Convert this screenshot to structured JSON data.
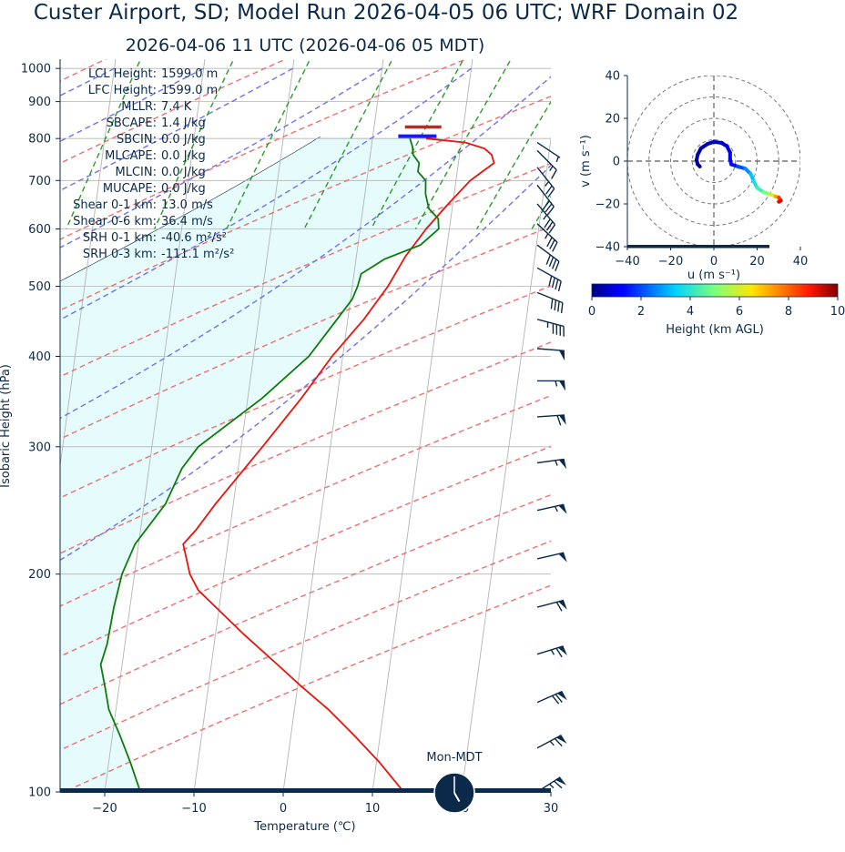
{
  "header": {
    "title": "Custer Airport, SD; Model Run 2026-04-05 06 UTC; WRF Domain 02",
    "subtitle": "2026-04-06 11 UTC  (2026-04-06 05 MDT)"
  },
  "colors": {
    "text": "#0b2a4a",
    "temperature": "#e8140c",
    "dewpoint": "#0a7d0a",
    "dry_adiabat": "#f06e6e",
    "moist_adiabat": "#6f6ff2",
    "mixing_ratio": "#2a9a2a",
    "isotherm": "#b4b4b4",
    "parcel_fill": "#e6fcfc",
    "lcl_marker": "#1a1aee",
    "surface_marker": "#a6322a",
    "barb": "#0b2a4a"
  },
  "chart_data": [
    {
      "type": "line",
      "subtype": "skew-t log-p",
      "xlabel": "Temperature (℃)",
      "ylabel": "Isobaric Height (hPa)",
      "xlim": [
        -25,
        30
      ],
      "ylim": [
        1030,
        100
      ],
      "log_y": true,
      "x_ticks": [
        "−20",
        "−10",
        "0",
        "10",
        "20",
        "30"
      ],
      "x_tick_values": [
        -20,
        -10,
        0,
        10,
        20,
        30
      ],
      "y_ticks": [
        "100",
        "200",
        "300",
        "400",
        "500",
        "600",
        "700",
        "800",
        "900",
        "1000"
      ],
      "y_tick_values": [
        100,
        200,
        300,
        400,
        500,
        600,
        700,
        800,
        900,
        1000
      ],
      "grid": true,
      "series": [
        {
          "key": "temperature",
          "points": [
            [
              800,
              6
            ],
            [
              790,
              10.5
            ],
            [
              775,
              12.7
            ],
            [
              760,
              13.6
            ],
            [
              740,
              14.0
            ],
            [
              720,
              12.8
            ],
            [
              700,
              11.6
            ],
            [
              650,
              9.5
            ],
            [
              600,
              7.4
            ],
            [
              550,
              5.5
            ],
            [
              500,
              4.0
            ],
            [
              450,
              1.8
            ],
            [
              400,
              -1.2
            ],
            [
              350,
              -4.0
            ],
            [
              300,
              -7.6
            ],
            [
              250,
              -12.0
            ],
            [
              230,
              -13.8
            ],
            [
              220,
              -15.0
            ],
            [
              200,
              -13.8
            ],
            [
              190,
              -12.6
            ],
            [
              165,
              -6.8
            ],
            [
              150,
              -2.6
            ],
            [
              140,
              0.4
            ],
            [
              130,
              3.8
            ],
            [
              120,
              7.0
            ],
            [
              110,
              10.3
            ],
            [
              100,
              13.5
            ]
          ]
        },
        {
          "key": "dewpoint",
          "points": [
            [
              800,
              4.2
            ],
            [
              780,
              4.6
            ],
            [
              760,
              4.8
            ],
            [
              740,
              5.6
            ],
            [
              720,
              5.6
            ],
            [
              700,
              6.6
            ],
            [
              670,
              6.8
            ],
            [
              640,
              7.4
            ],
            [
              620,
              8.6
            ],
            [
              600,
              8.8
            ],
            [
              570,
              7.0
            ],
            [
              545,
              3.2
            ],
            [
              520,
              0.8
            ],
            [
              500,
              0.6
            ],
            [
              480,
              0.2
            ],
            [
              450,
              -1.2
            ],
            [
              400,
              -3.8
            ],
            [
              350,
              -8.4
            ],
            [
              300,
              -14.8
            ],
            [
              280,
              -16.3
            ],
            [
              250,
              -17.6
            ],
            [
              220,
              -20.4
            ],
            [
              200,
              -21.4
            ],
            [
              180,
              -21.8
            ],
            [
              160,
              -22.0
            ],
            [
              150,
              -22.4
            ],
            [
              140,
              -21.6
            ],
            [
              130,
              -20.8
            ],
            [
              120,
              -19.2
            ],
            [
              110,
              -17.6
            ],
            [
              100,
              -16.0
            ]
          ]
        }
      ],
      "surface": {
        "pressure": 830,
        "temperature": 7.5,
        "dewpoint": 3.5
      },
      "lcl": {
        "pressure": 806,
        "temperature": 5.0
      },
      "annotations": [
        {
          "label": "LCL Height:",
          "value": "1599.0 m"
        },
        {
          "label": "LFC Height:",
          "value": "1599.0 m"
        },
        {
          "label": "MLLR:",
          "value": "7.4 K"
        },
        {
          "label": "SBCAPE:",
          "value": "1.4 J/kg"
        },
        {
          "label": "SBCIN:",
          "value": "0.0 J/kg"
        },
        {
          "label": "MLCAPE:",
          "value": "0.0 J/kg"
        },
        {
          "label": "MLCIN:",
          "value": "0.0 J/kg"
        },
        {
          "label": "MUCAPE:",
          "value": "0.0 J/kg"
        },
        {
          "label": "Shear 0-1 km:",
          "value": "13.0 m/s"
        },
        {
          "label": "Shear 0-6 km:",
          "value": "36.4 m/s"
        },
        {
          "label": "SRH 0-1 km:",
          "value": "-40.6 m²/s²"
        },
        {
          "label": "SRH 0-3 km:",
          "value": "-111.1 m²/s²"
        }
      ],
      "wind_barbs": [
        {
          "p": 100,
          "u": 28,
          "v": 18
        },
        {
          "p": 115,
          "u": 30,
          "v": 16
        },
        {
          "p": 133,
          "u": 32,
          "v": 14
        },
        {
          "p": 155,
          "u": 32,
          "v": 10
        },
        {
          "p": 180,
          "u": 30,
          "v": 8
        },
        {
          "p": 210,
          "u": 26,
          "v": 6
        },
        {
          "p": 245,
          "u": 27,
          "v": 6
        },
        {
          "p": 285,
          "u": 29,
          "v": 4
        },
        {
          "p": 330,
          "u": 30,
          "v": 2
        },
        {
          "p": 370,
          "u": 28,
          "v": 0
        },
        {
          "p": 410,
          "u": 26,
          "v": -2
        },
        {
          "p": 450,
          "u": 23,
          "v": -6
        },
        {
          "p": 490,
          "u": 20,
          "v": -8
        },
        {
          "p": 530,
          "u": 18,
          "v": -10
        },
        {
          "p": 570,
          "u": 16,
          "v": -12
        },
        {
          "p": 610,
          "u": 14,
          "v": -13
        },
        {
          "p": 650,
          "u": 12,
          "v": -14
        },
        {
          "p": 690,
          "u": 10,
          "v": -13
        },
        {
          "p": 730,
          "u": 8,
          "v": -10
        },
        {
          "p": 770,
          "u": 6,
          "v": -6
        },
        {
          "p": 790,
          "u": 3,
          "v": -2
        }
      ],
      "timezone_label": "Mon-MDT",
      "clock_time": {
        "hour": 5,
        "minute": 0
      }
    },
    {
      "type": "line",
      "subtype": "hodograph",
      "xlabel": "u (m s⁻¹)",
      "ylabel": "v (m s⁻¹)",
      "xlim": [
        -40,
        40
      ],
      "ylim": [
        -40,
        40
      ],
      "x_ticks": [
        "−40",
        "−20",
        "0",
        "20",
        "40"
      ],
      "x_tick_values": [
        -40,
        -20,
        0,
        20,
        40
      ],
      "y_ticks": [
        "−40",
        "−20",
        "0",
        "20",
        "40"
      ],
      "y_tick_values": [
        -40,
        -20,
        0,
        20,
        40
      ],
      "range_rings": [
        10,
        20,
        30,
        40
      ],
      "points": [
        {
          "u": -6.5,
          "v": -2.5,
          "h": 0.0
        },
        {
          "u": -7.5,
          "v": -1.5,
          "h": 0.1
        },
        {
          "u": -8.0,
          "v": 0.5,
          "h": 0.2
        },
        {
          "u": -7.5,
          "v": 3.0,
          "h": 0.3
        },
        {
          "u": -6.0,
          "v": 6.0,
          "h": 0.4
        },
        {
          "u": -3.0,
          "v": 8.0,
          "h": 0.5
        },
        {
          "u": 0.0,
          "v": 9.0,
          "h": 0.6
        },
        {
          "u": 3.5,
          "v": 8.5,
          "h": 0.7
        },
        {
          "u": 6.0,
          "v": 7.0,
          "h": 0.8
        },
        {
          "u": 7.5,
          "v": 4.0,
          "h": 0.9
        },
        {
          "u": 7.5,
          "v": 1.0,
          "h": 1.0
        },
        {
          "u": 8.0,
          "v": -1.5,
          "h": 1.2
        },
        {
          "u": 11.0,
          "v": -2.5,
          "h": 1.6
        },
        {
          "u": 14.5,
          "v": -3.5,
          "h": 2.4
        },
        {
          "u": 17.0,
          "v": -6.0,
          "h": 3.0
        },
        {
          "u": 18.5,
          "v": -9.5,
          "h": 3.5
        },
        {
          "u": 20.0,
          "v": -12.5,
          "h": 4.0
        },
        {
          "u": 23.0,
          "v": -14.5,
          "h": 4.6
        },
        {
          "u": 26.0,
          "v": -15.5,
          "h": 5.4
        },
        {
          "u": 28.5,
          "v": -16.5,
          "h": 6.6
        },
        {
          "u": 30.0,
          "v": -17.0,
          "h": 8.0
        },
        {
          "u": 31.0,
          "v": -18.5,
          "h": 9.0
        },
        {
          "u": 30.0,
          "v": -19.0,
          "h": 9.5
        }
      ]
    },
    {
      "type": "heatmap",
      "subtype": "colorbar",
      "xlabel": "Height (km AGL)",
      "xlim": [
        0,
        10
      ],
      "x_ticks": [
        "0",
        "2",
        "4",
        "6",
        "8",
        "10"
      ],
      "x_tick_values": [
        0,
        2,
        4,
        6,
        8,
        10
      ],
      "colormap": "jet"
    }
  ]
}
